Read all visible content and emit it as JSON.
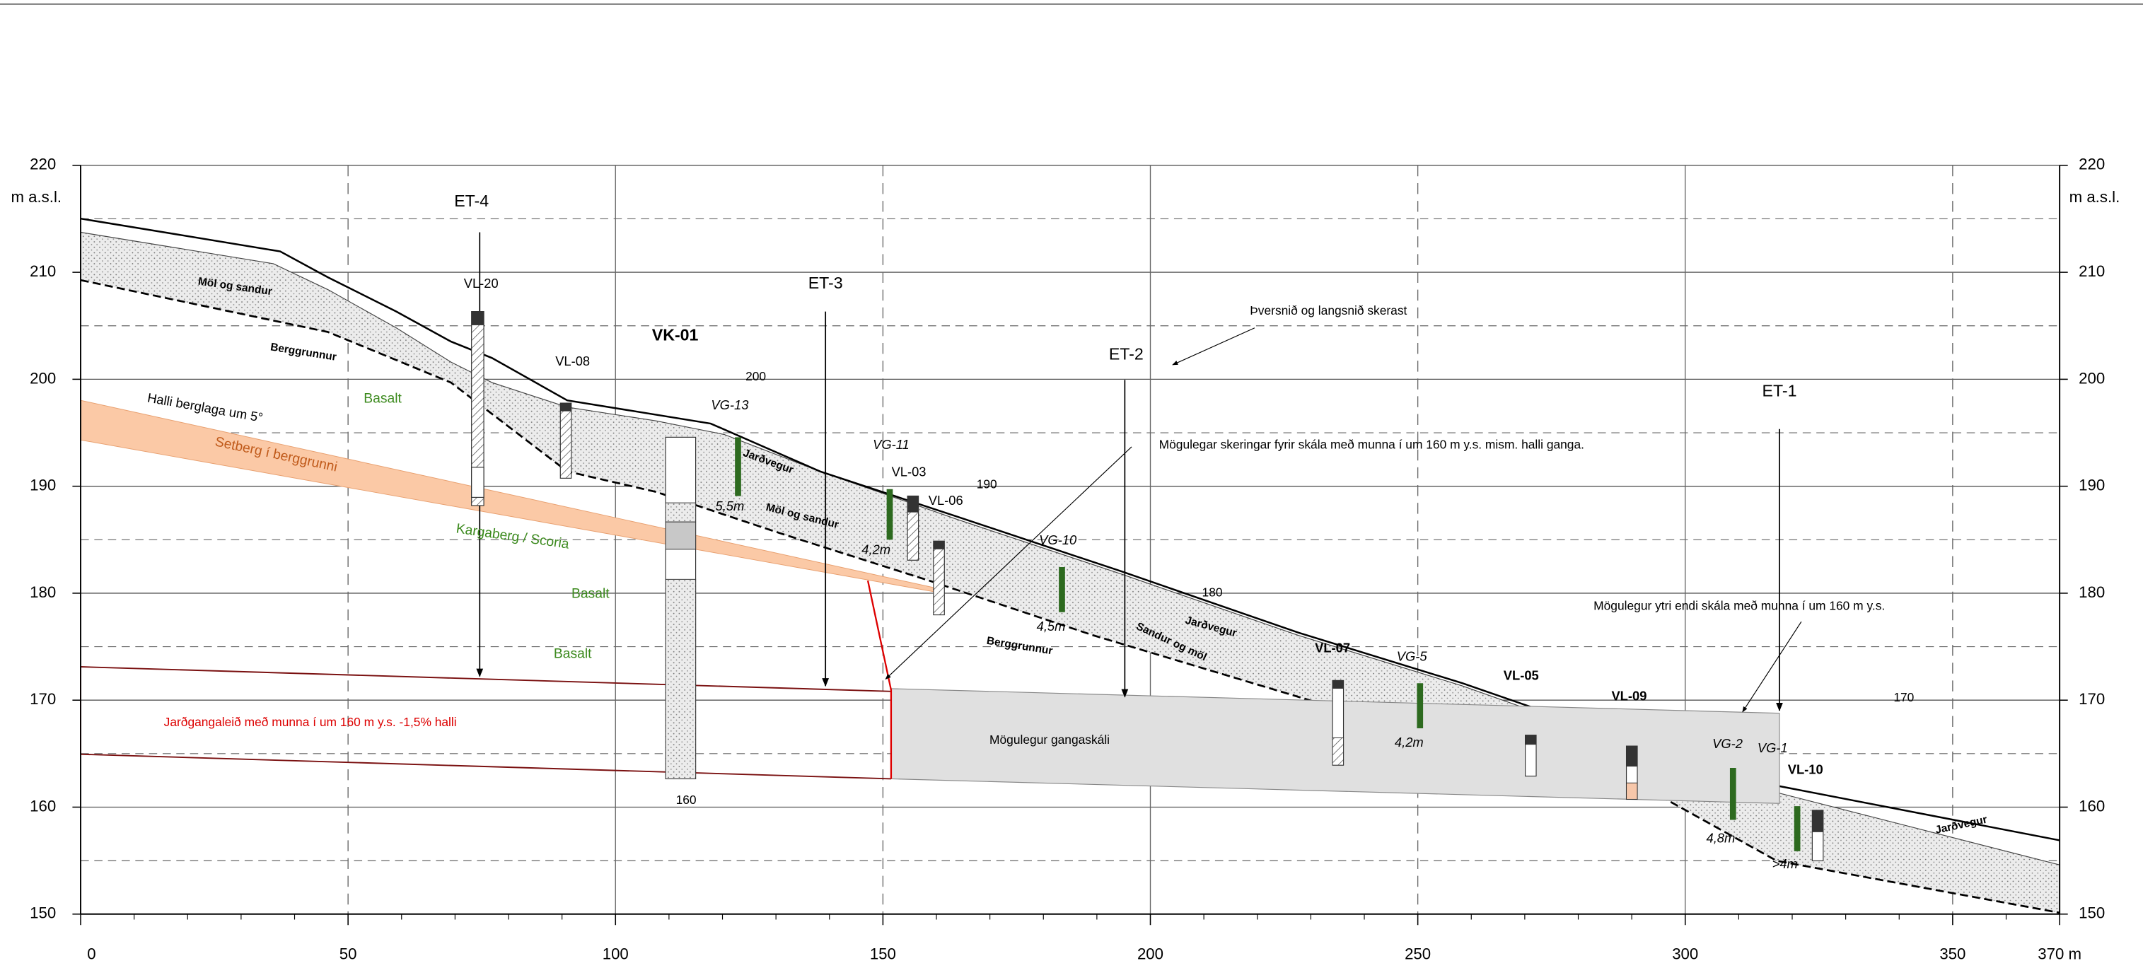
{
  "axis": {
    "unit": "m a.s.l.",
    "xlim": [
      0,
      370
    ],
    "ylim": [
      150,
      220
    ],
    "xticks": [
      0,
      50,
      100,
      150,
      200,
      250,
      300,
      350,
      {
        "value": 370,
        "label": "370 m"
      }
    ],
    "yticks": [
      150,
      160,
      170,
      180,
      190,
      200,
      210,
      220
    ]
  },
  "sections": [
    "ET-4",
    "ET-3",
    "ET-2",
    "ET-1"
  ],
  "boreholes": [
    "VL-20",
    "VL-08",
    "VK-01",
    "VG-13",
    "VG-11",
    "VL-03",
    "VL-06",
    "VG-10",
    "VL-07",
    "VG-5",
    "VL-05",
    "VL-09",
    "VG-2",
    "VG-1",
    "VL-10"
  ],
  "contours": [
    "200",
    "190",
    "180",
    "170",
    "160"
  ],
  "layers": [
    "Möl og sandur",
    "Möl og sandur",
    "Berggrunnur",
    "Berggrunnur",
    "Basalt",
    "Basalt",
    "Basalt",
    "Halli berglaga um 5°",
    "Setberg í berggrunni",
    "Kargaberg / Scoria",
    "Jarðvegur",
    "Jarðvegur",
    "Jarðvegur",
    "Sandur og möl"
  ],
  "depths": [
    "5,5m",
    "4,2m",
    "4,5m",
    "4,2m",
    "4,8m",
    ">4m"
  ],
  "notes": [
    "Mögulegur gangaskáli",
    "Jarðgangaleið með munna í um 160 m y.s. -1,5% halli",
    "Þversnið og langsnið skerast",
    "Mögulegar skeringar fyrir skála með munna í um 160 m y.s. mism. halli ganga.",
    "Mögulegur ytri endi skála með munna í um 160 m y.s."
  ]
}
